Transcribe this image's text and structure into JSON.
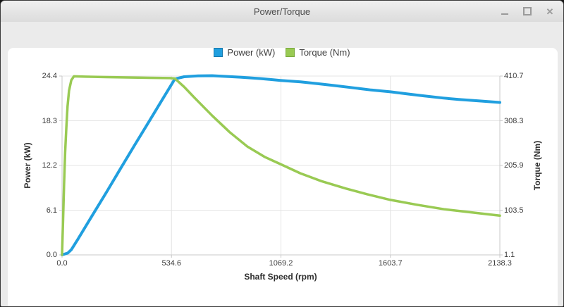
{
  "window": {
    "title": "Power/Torque",
    "controls": {
      "minimize": "minimize-icon",
      "maximize": "maximize-icon",
      "close_glyph": "✕"
    }
  },
  "chart_data": {
    "type": "line",
    "title": "Power/Torque",
    "xlabel": "Shaft Speed (rpm)",
    "x_range": [
      0,
      2138.3
    ],
    "x_ticks": [
      "0.0",
      "534.6",
      "1069.2",
      "1603.7",
      "2138.3"
    ],
    "grid": true,
    "legend_position": "top",
    "y_left": {
      "label": "Power (kW)",
      "range": [
        0,
        24.4
      ],
      "ticks": [
        "0.0",
        "6.1",
        "12.2",
        "18.3",
        "24.4"
      ]
    },
    "y_right": {
      "label": "Torque (Nm)",
      "range": [
        1.1,
        410.7
      ],
      "ticks": [
        "1.1",
        "103.5",
        "205.9",
        "308.3",
        "410.7"
      ]
    },
    "series": [
      {
        "name": "Power (kW)",
        "axis": "left",
        "color": "#209fdf",
        "swatch_border": "#1779ad",
        "stroke_width": 4,
        "points": [
          [
            0,
            0
          ],
          [
            28,
            0.25
          ],
          [
            45,
            0.7
          ],
          [
            62,
            1.45
          ],
          [
            79,
            2.2
          ],
          [
            148,
            5.4
          ],
          [
            217,
            8.55
          ],
          [
            286,
            11.8
          ],
          [
            355,
            15.0
          ],
          [
            423,
            18.1
          ],
          [
            492,
            21.3
          ],
          [
            551,
            24.0
          ],
          [
            596,
            24.3
          ],
          [
            664,
            24.42
          ],
          [
            733,
            24.45
          ],
          [
            871,
            24.25
          ],
          [
            970,
            24.05
          ],
          [
            1067,
            23.8
          ],
          [
            1165,
            23.6
          ],
          [
            1250,
            23.35
          ],
          [
            1330,
            23.1
          ],
          [
            1422,
            22.8
          ],
          [
            1510,
            22.5
          ],
          [
            1604,
            22.25
          ],
          [
            1690,
            21.95
          ],
          [
            1766,
            21.7
          ],
          [
            1860,
            21.4
          ],
          [
            1938,
            21.2
          ],
          [
            2040,
            21.0
          ],
          [
            2138.3,
            20.8
          ]
        ]
      },
      {
        "name": "Torque (Nm)",
        "axis": "right",
        "color": "#99ca53",
        "swatch_border": "#7aa93e",
        "stroke_width": 3.5,
        "points": [
          [
            0,
            1.1
          ],
          [
            5,
            83
          ],
          [
            10,
            164
          ],
          [
            15,
            236
          ],
          [
            21,
            293
          ],
          [
            27,
            341
          ],
          [
            34,
            377
          ],
          [
            45,
            401
          ],
          [
            58,
            410
          ],
          [
            114,
            409.2
          ],
          [
            217,
            408.3
          ],
          [
            320,
            407.5
          ],
          [
            424,
            406.7
          ],
          [
            527,
            406
          ],
          [
            551,
            405
          ],
          [
            596,
            386
          ],
          [
            647,
            361
          ],
          [
            733,
            320
          ],
          [
            819,
            282
          ],
          [
            906,
            249
          ],
          [
            992,
            225
          ],
          [
            1067,
            209
          ],
          [
            1164,
            188
          ],
          [
            1267,
            170
          ],
          [
            1387,
            153
          ],
          [
            1491,
            140
          ],
          [
            1604,
            127
          ],
          [
            1731,
            116
          ],
          [
            1869,
            105.5
          ],
          [
            2007,
            98
          ],
          [
            2138.3,
            91
          ]
        ]
      }
    ]
  }
}
